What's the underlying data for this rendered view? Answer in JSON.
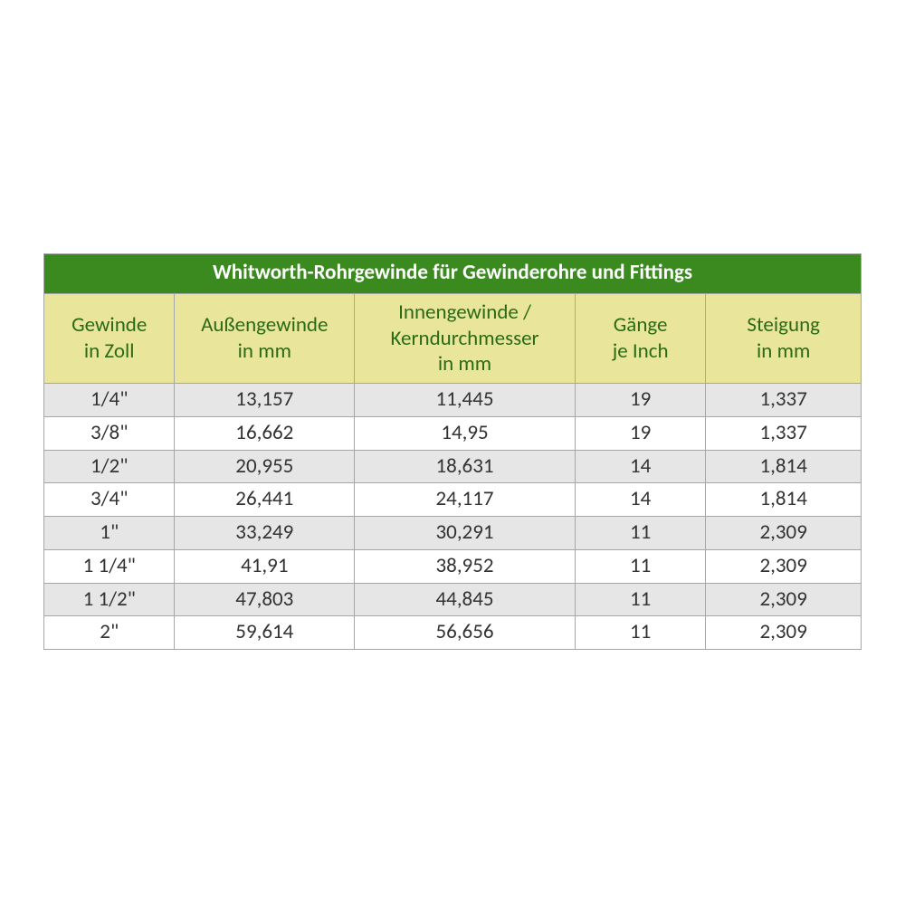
{
  "table": {
    "type": "table",
    "title": "Whitworth-Rohrgewinde für Gewinderohre und Fittings",
    "columns": [
      "Gewinde\nin Zoll",
      "Außengewinde\nin mm",
      "Innengewinde /\nKerndurchmesser\nin mm",
      "Gänge\nje Inch",
      "Steigung\nin mm"
    ],
    "column_widths_pct": [
      16,
      22,
      27,
      16,
      19
    ],
    "rows": [
      [
        "1/4\"",
        "13,157",
        "11,445",
        "19",
        "1,337"
      ],
      [
        "3/8\"",
        "16,662",
        "14,95",
        "19",
        "1,337"
      ],
      [
        "1/2\"",
        "20,955",
        "18,631",
        "14",
        "1,814"
      ],
      [
        "3/4\"",
        "26,441",
        "24,117",
        "14",
        "1,814"
      ],
      [
        "1\"",
        "33,249",
        "30,291",
        "11",
        "2,309"
      ],
      [
        "1 1/4\"",
        "41,91",
        "38,952",
        "11",
        "2,309"
      ],
      [
        "1 1/2\"",
        "47,803",
        "44,845",
        "11",
        "2,309"
      ],
      [
        "2\"",
        "59,614",
        "56,656",
        "11",
        "2,309"
      ]
    ],
    "style": {
      "title_bg": "#3a8a1f",
      "title_color": "#ffffff",
      "title_fontsize": 23,
      "title_fontweight": "bold",
      "header_bg": "#e9e59a",
      "header_color": "#2b6b17",
      "header_fontsize": 23,
      "row_odd_bg": "#e6e6e6",
      "row_even_bg": "#ffffff",
      "cell_color": "#333333",
      "cell_fontsize": 23,
      "border_color": "#a6a6a6",
      "font_family": "Calibri, Arial, sans-serif"
    }
  }
}
